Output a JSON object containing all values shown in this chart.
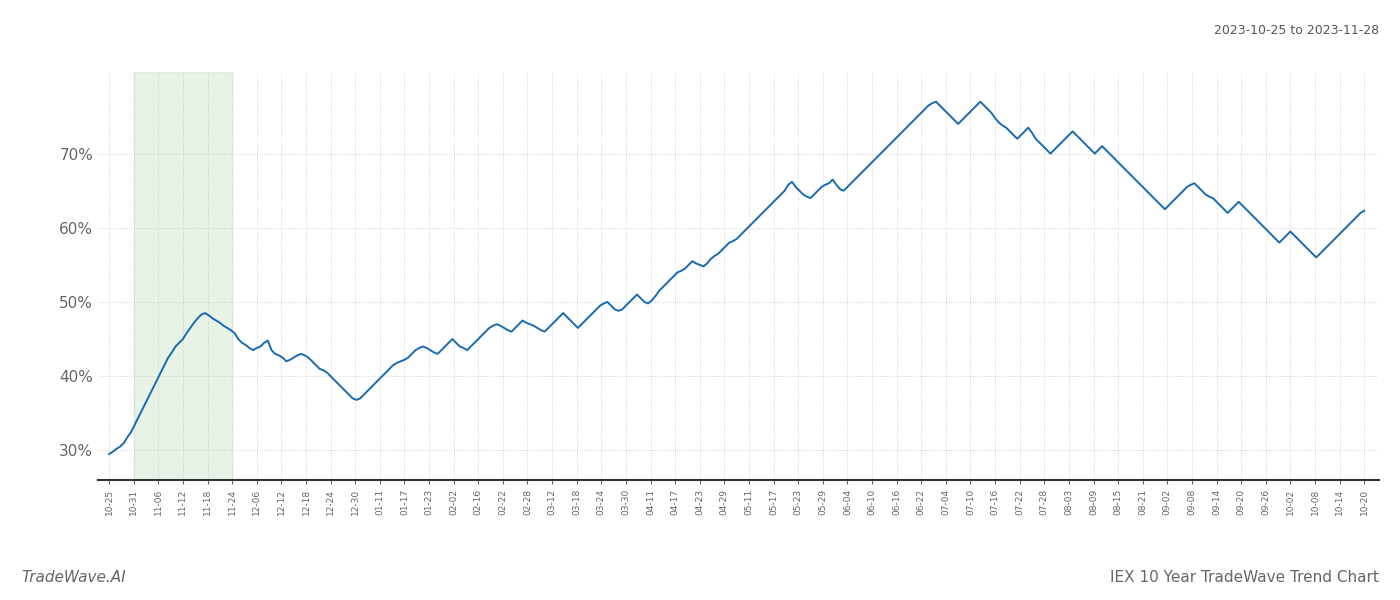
{
  "title_top_right": "2023-10-25 to 2023-11-28",
  "title_bottom_right": "IEX 10 Year TradeWave Trend Chart",
  "title_bottom_left": "TradeWave.AI",
  "line_color": "#1a6ab0",
  "line_width": 1.4,
  "highlight_color": "#c8e6c8",
  "highlight_alpha": 0.45,
  "background_color": "#ffffff",
  "grid_color": "#c8c8c8",
  "grid_style": ":",
  "ylim": [
    26,
    81
  ],
  "yticks": [
    30,
    40,
    50,
    60,
    70
  ],
  "ytick_labels": [
    "30%",
    "40%",
    "50%",
    "60%",
    "70%"
  ],
  "x_labels": [
    "10-25",
    "10-31",
    "11-06",
    "11-12",
    "11-18",
    "11-24",
    "12-06",
    "12-12",
    "12-18",
    "12-24",
    "12-30",
    "01-11",
    "01-17",
    "01-23",
    "02-02",
    "02-16",
    "02-22",
    "02-28",
    "03-12",
    "03-18",
    "03-24",
    "03-30",
    "04-11",
    "04-17",
    "04-23",
    "04-29",
    "05-11",
    "05-17",
    "05-23",
    "05-29",
    "06-04",
    "06-10",
    "06-16",
    "06-22",
    "07-04",
    "07-10",
    "07-16",
    "07-22",
    "07-28",
    "08-03",
    "08-09",
    "08-15",
    "08-21",
    "09-02",
    "09-08",
    "09-14",
    "09-20",
    "09-26",
    "10-02",
    "10-08",
    "10-14",
    "10-20"
  ],
  "values": [
    29.5,
    29.8,
    30.2,
    30.5,
    31.0,
    31.8,
    32.5,
    33.5,
    34.5,
    35.5,
    36.5,
    37.5,
    38.5,
    39.5,
    40.5,
    41.5,
    42.5,
    43.2,
    44.0,
    44.5,
    45.0,
    45.8,
    46.5,
    47.2,
    47.8,
    48.3,
    48.5,
    48.2,
    47.8,
    47.5,
    47.2,
    46.8,
    46.5,
    46.2,
    45.8,
    45.0,
    44.5,
    44.2,
    43.8,
    43.5,
    43.8,
    44.0,
    44.5,
    44.8,
    43.5,
    43.0,
    42.8,
    42.5,
    42.0,
    42.2,
    42.5,
    42.8,
    43.0,
    42.8,
    42.5,
    42.0,
    41.5,
    41.0,
    40.8,
    40.5,
    40.0,
    39.5,
    39.0,
    38.5,
    38.0,
    37.5,
    37.0,
    36.8,
    37.0,
    37.5,
    38.0,
    38.5,
    39.0,
    39.5,
    40.0,
    40.5,
    41.0,
    41.5,
    41.8,
    42.0,
    42.2,
    42.5,
    43.0,
    43.5,
    43.8,
    44.0,
    43.8,
    43.5,
    43.2,
    43.0,
    43.5,
    44.0,
    44.5,
    45.0,
    44.5,
    44.0,
    43.8,
    43.5,
    44.0,
    44.5,
    45.0,
    45.5,
    46.0,
    46.5,
    46.8,
    47.0,
    46.8,
    46.5,
    46.2,
    46.0,
    46.5,
    47.0,
    47.5,
    47.2,
    47.0,
    46.8,
    46.5,
    46.2,
    46.0,
    46.5,
    47.0,
    47.5,
    48.0,
    48.5,
    48.0,
    47.5,
    47.0,
    46.5,
    47.0,
    47.5,
    48.0,
    48.5,
    49.0,
    49.5,
    49.8,
    50.0,
    49.5,
    49.0,
    48.8,
    49.0,
    49.5,
    50.0,
    50.5,
    51.0,
    50.5,
    50.0,
    49.8,
    50.2,
    50.8,
    51.5,
    52.0,
    52.5,
    53.0,
    53.5,
    54.0,
    54.2,
    54.5,
    55.0,
    55.5,
    55.2,
    55.0,
    54.8,
    55.2,
    55.8,
    56.2,
    56.5,
    57.0,
    57.5,
    58.0,
    58.2,
    58.5,
    59.0,
    59.5,
    60.0,
    60.5,
    61.0,
    61.5,
    62.0,
    62.5,
    63.0,
    63.5,
    64.0,
    64.5,
    65.0,
    65.8,
    66.2,
    65.5,
    65.0,
    64.5,
    64.2,
    64.0,
    64.5,
    65.0,
    65.5,
    65.8,
    66.0,
    66.5,
    65.8,
    65.2,
    65.0,
    65.5,
    66.0,
    66.5,
    67.0,
    67.5,
    68.0,
    68.5,
    69.0,
    69.5,
    70.0,
    70.5,
    71.0,
    71.5,
    72.0,
    72.5,
    73.0,
    73.5,
    74.0,
    74.5,
    75.0,
    75.5,
    76.0,
    76.5,
    76.8,
    77.0,
    76.5,
    76.0,
    75.5,
    75.0,
    74.5,
    74.0,
    74.5,
    75.0,
    75.5,
    76.0,
    76.5,
    77.0,
    76.5,
    76.0,
    75.5,
    74.8,
    74.2,
    73.8,
    73.5,
    73.0,
    72.5,
    72.0,
    72.5,
    73.0,
    73.5,
    72.8,
    72.0,
    71.5,
    71.0,
    70.5,
    70.0,
    70.5,
    71.0,
    71.5,
    72.0,
    72.5,
    73.0,
    72.5,
    72.0,
    71.5,
    71.0,
    70.5,
    70.0,
    70.5,
    71.0,
    70.5,
    70.0,
    69.5,
    69.0,
    68.5,
    68.0,
    67.5,
    67.0,
    66.5,
    66.0,
    65.5,
    65.0,
    64.5,
    64.0,
    63.5,
    63.0,
    62.5,
    63.0,
    63.5,
    64.0,
    64.5,
    65.0,
    65.5,
    65.8,
    66.0,
    65.5,
    65.0,
    64.5,
    64.2,
    64.0,
    63.5,
    63.0,
    62.5,
    62.0,
    62.5,
    63.0,
    63.5,
    63.0,
    62.5,
    62.0,
    61.5,
    61.0,
    60.5,
    60.0,
    59.5,
    59.0,
    58.5,
    58.0,
    58.5,
    59.0,
    59.5,
    59.0,
    58.5,
    58.0,
    57.5,
    57.0,
    56.5,
    56.0,
    56.5,
    57.0,
    57.5,
    58.0,
    58.5,
    59.0,
    59.5,
    60.0,
    60.5,
    61.0,
    61.5,
    62.0,
    62.3
  ]
}
